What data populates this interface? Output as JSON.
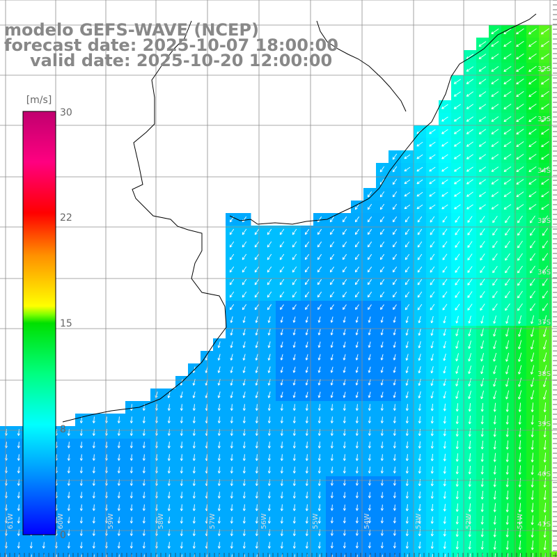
{
  "map": {
    "title": "modelo GEFS-WAVE (NCEP)",
    "forecast_date": "forecast date: 2025-10-07 18:00:00",
    "valid_date": "valid date: 2025-10-20 12:00:00",
    "variable": "wind speed and direction",
    "region": "Rio de la Plata / southern Brazil and Uruguay coast",
    "lat_labels": [
      "32S",
      "33S",
      "34S",
      "35S",
      "36S",
      "37S",
      "38S",
      "39S",
      "40S",
      "41S"
    ],
    "lon_labels": [
      "61W",
      "60W",
      "59W",
      "58W",
      "57W",
      "56W",
      "55W",
      "54W",
      "53W",
      "52W",
      "51W"
    ]
  },
  "colorbar": {
    "unit": "[m/s]",
    "max_label": "30",
    "ticks": [
      "22",
      "15",
      "8",
      "0"
    ],
    "colors": [
      "#0000ff",
      "#0090ff",
      "#00ffff",
      "#00ff00",
      "#ffff00",
      "#ff8000",
      "#ff0000",
      "#ff0080",
      "#c0006f"
    ]
  },
  "styles": {
    "land": "#ffffff",
    "coast": "#000000",
    "grid": "#8c8c8c",
    "arrow": "#ffffff",
    "title_text": "#888888"
  }
}
